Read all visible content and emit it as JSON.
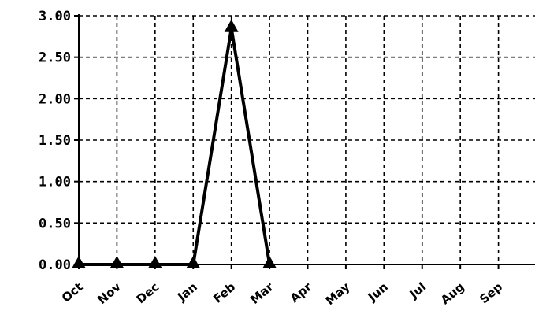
{
  "chart_data": {
    "type": "line",
    "title": "",
    "xlabel": "",
    "ylabel": "",
    "categories": [
      "Oct",
      "Nov",
      "Dec",
      "Jan",
      "Feb",
      "Mar",
      "Apr",
      "May",
      "Jun",
      "Jul",
      "Aug",
      "Sep"
    ],
    "yticks": [
      "0.00",
      "0.50",
      "1.00",
      "1.50",
      "2.00",
      "2.50",
      "3.00"
    ],
    "ylim": [
      0,
      3
    ],
    "grid": true,
    "legend": "none",
    "marker": "triangle",
    "series": [
      {
        "values": [
          0,
          0,
          0,
          0,
          2.85,
          0,
          null,
          null,
          null,
          null,
          null,
          null
        ],
        "color": "#000000"
      }
    ]
  }
}
